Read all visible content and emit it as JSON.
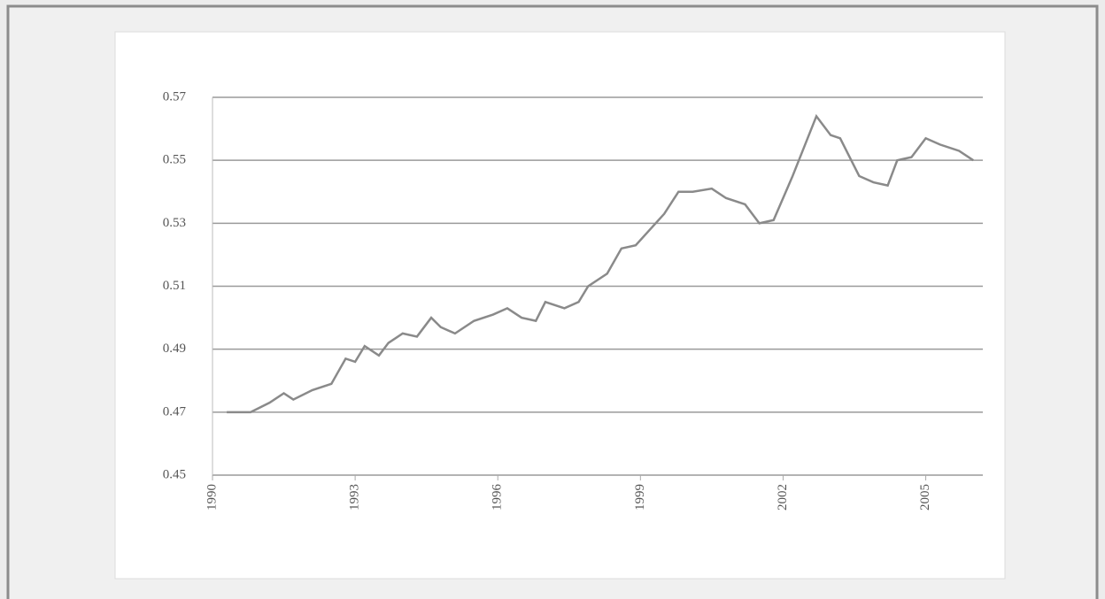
{
  "chart_data": {
    "type": "line",
    "x": [
      1990.3,
      1990.8,
      1991.2,
      1991.5,
      1991.7,
      1992.1,
      1992.5,
      1992.8,
      1993.0,
      1993.2,
      1993.5,
      1993.7,
      1994.0,
      1994.3,
      1994.6,
      1994.8,
      1995.1,
      1995.5,
      1995.9,
      1996.2,
      1996.5,
      1996.8,
      1997.0,
      1997.4,
      1997.7,
      1997.9,
      1998.3,
      1998.6,
      1998.9,
      1999.2,
      1999.5,
      1999.8,
      2000.1,
      2000.5,
      2000.8,
      2001.2,
      2001.5,
      2001.8,
      2002.2,
      2002.7,
      2003.0,
      2003.2,
      2003.6,
      2003.9,
      2004.2,
      2004.4,
      2004.7,
      2005.0,
      2005.3,
      2005.7,
      2006.0
    ],
    "series": [
      {
        "color": "#8a8a8a",
        "values": [
          0.47,
          0.47,
          0.473,
          0.476,
          0.474,
          0.477,
          0.479,
          0.487,
          0.486,
          0.491,
          0.488,
          0.492,
          0.495,
          0.494,
          0.5,
          0.497,
          0.495,
          0.499,
          0.501,
          0.503,
          0.5,
          0.499,
          0.505,
          0.503,
          0.505,
          0.51,
          0.514,
          0.522,
          0.523,
          0.528,
          0.533,
          0.54,
          0.54,
          0.541,
          0.538,
          0.536,
          0.53,
          0.531,
          0.545,
          0.564,
          0.558,
          0.557,
          0.545,
          0.543,
          0.542,
          0.55,
          0.551,
          0.557,
          0.555,
          0.553,
          0.55
        ]
      }
    ],
    "xlim": [
      1990,
      2006.2
    ],
    "xticks": [
      1990,
      1993,
      1996,
      1999,
      2002,
      2005
    ],
    "ylim": [
      0.45,
      0.57
    ],
    "yticks": [
      0.45,
      0.47,
      0.49,
      0.51,
      0.53,
      0.55,
      0.57
    ],
    "grid": true
  }
}
